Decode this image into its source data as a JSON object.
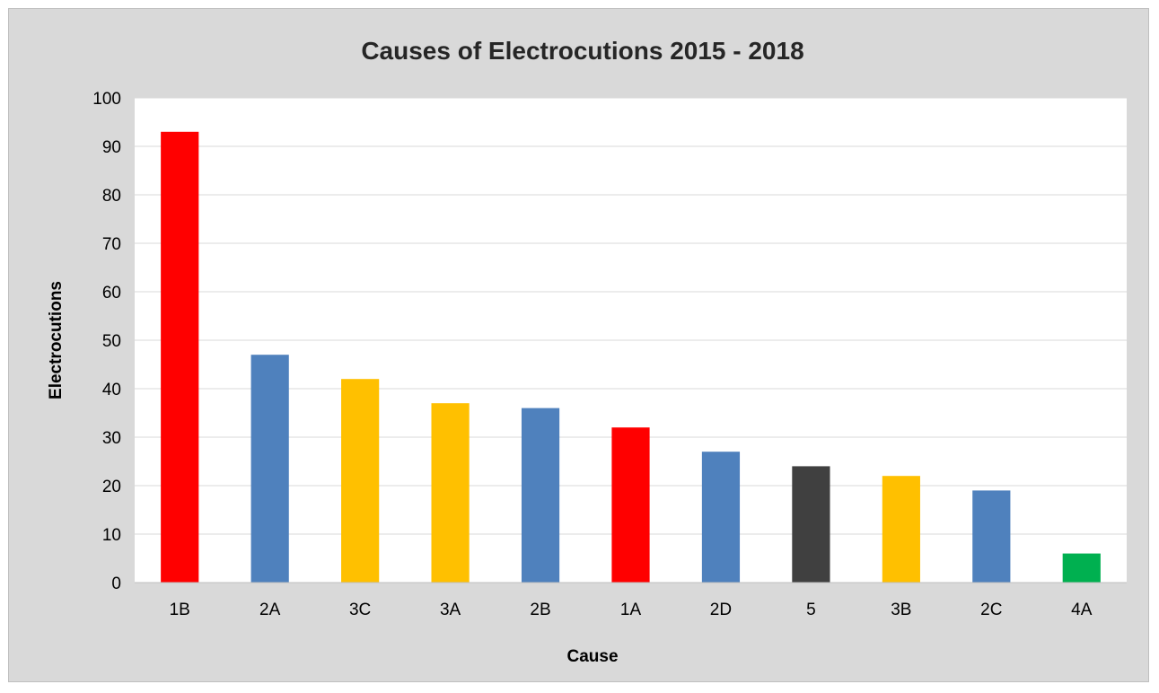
{
  "chart_data": {
    "type": "bar",
    "title": "Causes of Electrocutions 2015 - 2018",
    "xlabel": "Cause",
    "ylabel": "Electrocutions",
    "ylim": [
      0,
      100
    ],
    "yticks": [
      0,
      10,
      20,
      30,
      40,
      50,
      60,
      70,
      80,
      90,
      100
    ],
    "grid": true,
    "legend": "none",
    "categories": [
      "1B",
      "2A",
      "3C",
      "3A",
      "2B",
      "1A",
      "2D",
      "5",
      "3B",
      "2C",
      "4A"
    ],
    "values": [
      93,
      47,
      42,
      37,
      36,
      32,
      27,
      24,
      22,
      19,
      6
    ],
    "colors": [
      "#ff0000",
      "#4f81bd",
      "#ffc000",
      "#ffc000",
      "#4f81bd",
      "#ff0000",
      "#4f81bd",
      "#404040",
      "#ffc000",
      "#4f81bd",
      "#00b050"
    ]
  }
}
